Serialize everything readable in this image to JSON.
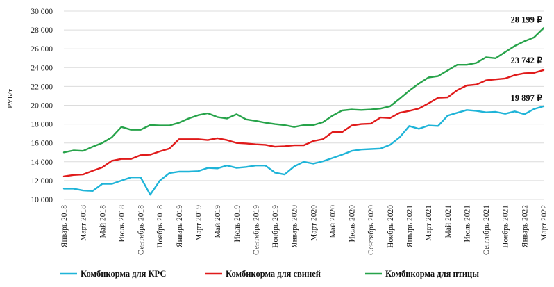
{
  "chart_data": {
    "type": "line",
    "title": "",
    "xlabel": "",
    "ylabel": "РУБ/т",
    "ylim": [
      10000,
      30000
    ],
    "yticks": [
      "10 000",
      "12 000",
      "14 000",
      "16 000",
      "18 000",
      "20 000",
      "22 000",
      "24 000",
      "26 000",
      "28 000",
      "30 000"
    ],
    "grid": true,
    "legend_position": "bottom",
    "x": [
      "Январь 2018",
      "Февраль 2018",
      "Март 2018",
      "Апрель 2018",
      "Май 2018",
      "Июнь 2018",
      "Июль 2018",
      "Август 2018",
      "Сентябрь 2018",
      "Октябрь 2018",
      "Ноябрь 2018",
      "Декабрь 2018",
      "Январь 2019",
      "Февраль 2019",
      "Март 2019",
      "Апрель 2019",
      "Май 2019",
      "Июнь 2019",
      "Июль 2019",
      "Август 2019",
      "Сентябрь 2019",
      "Октябрь 2019",
      "Ноябрь 2019",
      "Декабрь 2019",
      "Январь 2020",
      "Февраль 2020",
      "Март 2020",
      "Апрель 2020",
      "Май 2020",
      "Июнь 2020",
      "Июль 2020",
      "Август 2020",
      "Сентябрь 2020",
      "Октябрь 2020",
      "Ноябрь 2020",
      "Декабрь 2020",
      "Январь 2021",
      "Февраль 2021",
      "Март 2021",
      "Апрель 2021",
      "Май 2021",
      "Июнь 2021",
      "Июль 2021",
      "Август 2021",
      "Сентябрь 2021",
      "Октябрь 2021",
      "Ноябрь 2021",
      "Декабрь 2021",
      "Январь 2022",
      "Февраль 2022",
      "Март 2022"
    ],
    "x_tick_labels": [
      "Январь 2018",
      "",
      "Март 2018",
      "",
      "Май 2018",
      "",
      "Июль 2018",
      "",
      "Сентябрь 2018",
      "",
      "Ноябрь 2018",
      "",
      "Январь 2019",
      "",
      "Март 2019",
      "",
      "Май 2019",
      "",
      "Июль 2019",
      "",
      "Сентябрь 2019",
      "",
      "Ноябрь 2019",
      "",
      "Январь 2020",
      "",
      "Март 2020",
      "",
      "Май 2020",
      "",
      "Июль 2020",
      "",
      "Сентябрь 2020",
      "",
      "Ноябрь 2020",
      "",
      "Январь 2021",
      "",
      "Март 2021",
      "",
      "Май 2021",
      "",
      "Июль 2021",
      "",
      "Сентябрь 2021",
      "",
      "Ноябрь 2021",
      "",
      "Январь 2022",
      "",
      "Март 2022"
    ],
    "series": [
      {
        "name": "Комбикорма для КРС",
        "color": "#1fb4d8",
        "end_label": "19 897 ₽",
        "values": [
          11150,
          11150,
          10950,
          10900,
          11650,
          11650,
          12000,
          12350,
          12350,
          10500,
          12000,
          12800,
          12950,
          12950,
          13000,
          13350,
          13300,
          13600,
          13350,
          13450,
          13600,
          13600,
          12850,
          12650,
          13500,
          14000,
          13800,
          14050,
          14400,
          14750,
          15150,
          15300,
          15350,
          15400,
          15800,
          16600,
          17800,
          17500,
          17850,
          17800,
          18900,
          19200,
          19500,
          19400,
          19250,
          19300,
          19100,
          19350,
          19050,
          19600,
          19897
        ]
      },
      {
        "name": "Комбикорма для свиней",
        "color": "#e01b1b",
        "end_label": "23 742 ₽",
        "values": [
          12450,
          12600,
          12650,
          13050,
          13400,
          14100,
          14300,
          14300,
          14700,
          14750,
          15100,
          15400,
          16400,
          16400,
          16400,
          16300,
          16500,
          16300,
          16000,
          15950,
          15850,
          15800,
          15600,
          15650,
          15750,
          15750,
          16200,
          16400,
          17150,
          17150,
          17850,
          18000,
          18050,
          18700,
          18650,
          19200,
          19400,
          19650,
          20200,
          20800,
          20850,
          21600,
          22100,
          22200,
          22650,
          22750,
          22850,
          23200,
          23400,
          23450,
          23742
        ]
      },
      {
        "name": "Комбикорма для птицы",
        "color": "#27a34a",
        "end_label": "28 199 ₽",
        "values": [
          15000,
          15200,
          15150,
          15600,
          16000,
          16600,
          17700,
          17400,
          17400,
          17900,
          17850,
          17850,
          18150,
          18600,
          18950,
          19150,
          18750,
          18600,
          19050,
          18500,
          18350,
          18150,
          18000,
          17900,
          17700,
          17900,
          17900,
          18200,
          18900,
          19450,
          19550,
          19500,
          19550,
          19650,
          19900,
          20700,
          21550,
          22300,
          22950,
          23100,
          23700,
          24300,
          24300,
          24500,
          25100,
          25000,
          25650,
          26300,
          26800,
          27200,
          28199
        ]
      }
    ]
  }
}
